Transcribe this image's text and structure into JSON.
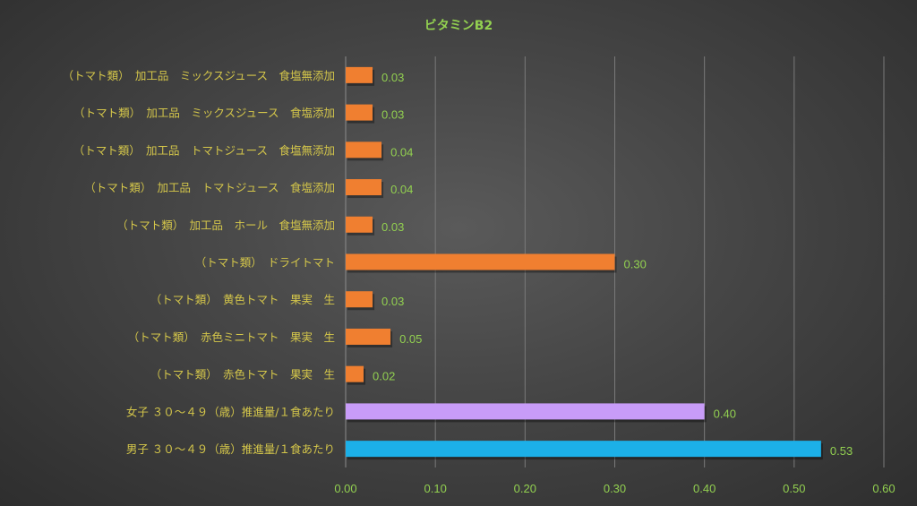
{
  "chart_data": {
    "type": "bar",
    "orientation": "horizontal",
    "title": "ビタミンB2",
    "xlabel": "",
    "ylabel": "",
    "xlim": [
      0,
      0.6
    ],
    "x_ticks": [
      "0.00",
      "0.10",
      "0.20",
      "0.30",
      "0.40",
      "0.50",
      "0.60"
    ],
    "grid": true,
    "legend": "none",
    "categories": [
      "（トマト類）　加工品　ミックスジュース　食塩無添加",
      "（トマト類）　加工品　ミックスジュース　食塩添加",
      "（トマト類）　加工品　トマトジュース　食塩無添加",
      "（トマト類）　加工品　トマトジュース　食塩添加",
      "（トマト類）　加工品　ホール　食塩無添加",
      "（トマト類）　ドライトマト",
      "（トマト類）　黄色トマト　果実　生",
      "（トマト類）　赤色ミニトマト　果実　生",
      "（トマト類）　赤色トマト　果実　生",
      "女子 ３０～４９（歳）推進量/１食あたり",
      "男子 ３０～４９（歳）推進量/１食あたり"
    ],
    "values": [
      0.03,
      0.03,
      0.04,
      0.04,
      0.03,
      0.3,
      0.03,
      0.05,
      0.02,
      0.4,
      0.53
    ],
    "value_labels": [
      "0.03",
      "0.03",
      "0.04",
      "0.04",
      "0.03",
      "0.30",
      "0.03",
      "0.05",
      "0.02",
      "0.40",
      "0.53"
    ],
    "bar_colors": [
      "#f07f30",
      "#f07f30",
      "#f07f30",
      "#f07f30",
      "#f07f30",
      "#f07f30",
      "#f07f30",
      "#f07f30",
      "#f07f30",
      "#c89cf8",
      "#1cb0e8"
    ],
    "colors": {
      "title": "#92d050",
      "category_labels": "#d4c64a",
      "tick_labels": "#92d050",
      "data_labels": "#92d050",
      "gridlines": "#7a7a7a"
    }
  }
}
